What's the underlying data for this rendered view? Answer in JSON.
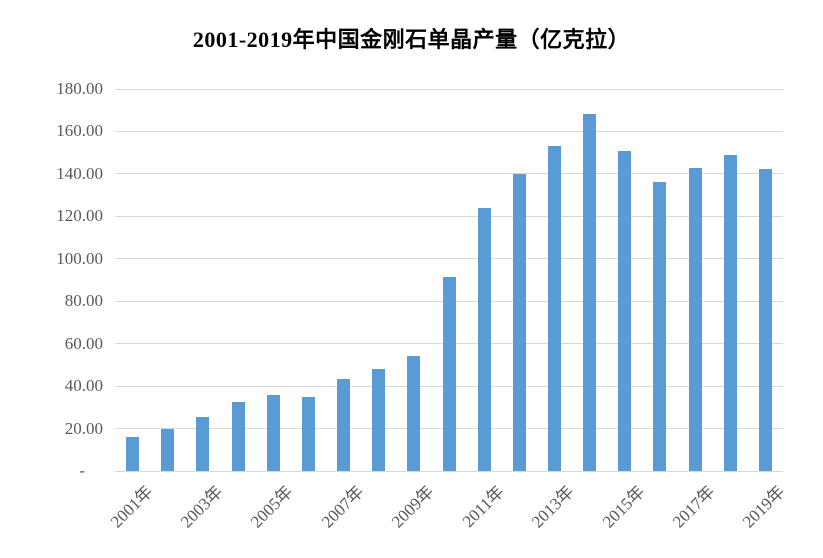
{
  "title": "2001-2019年中国金刚石单晶产量（亿克拉）",
  "chart_data": {
    "type": "bar",
    "title": "2001-2019年中国金刚石单晶产量（亿克拉）",
    "categories": [
      "2001年",
      "2002年",
      "2003年",
      "2004年",
      "2005年",
      "2006年",
      "2007年",
      "2008年",
      "2009年",
      "2010年",
      "2011年",
      "2012年",
      "2013年",
      "2014年",
      "2015年",
      "2016年",
      "2017年",
      "2018年",
      "2019年"
    ],
    "values": [
      16,
      19.8,
      25.5,
      32.6,
      35.8,
      34.9,
      43.5,
      48,
      54,
      91.6,
      124,
      140,
      153,
      168.2,
      151,
      136,
      143,
      149,
      142.4
    ],
    "xlabel": "",
    "ylabel": "",
    "ylim": [
      0,
      180
    ],
    "y_tick_interval": 20,
    "y_tick_labels": [
      "-",
      "20.00",
      "40.00",
      "60.00",
      "80.00",
      "100.00",
      "120.00",
      "140.00",
      "160.00",
      "180.00"
    ],
    "x_tick_labels_shown": [
      "2001年",
      "2003年",
      "2005年",
      "2007年",
      "2009年",
      "2011年",
      "2013年",
      "2015年",
      "2017年",
      "2019年"
    ],
    "grid": true,
    "legend_position": "none",
    "bar_color": "#5b9bd5",
    "gridline_color": "#d9d9d9",
    "axis_label_color": "#595959",
    "title_color": "#000000"
  }
}
